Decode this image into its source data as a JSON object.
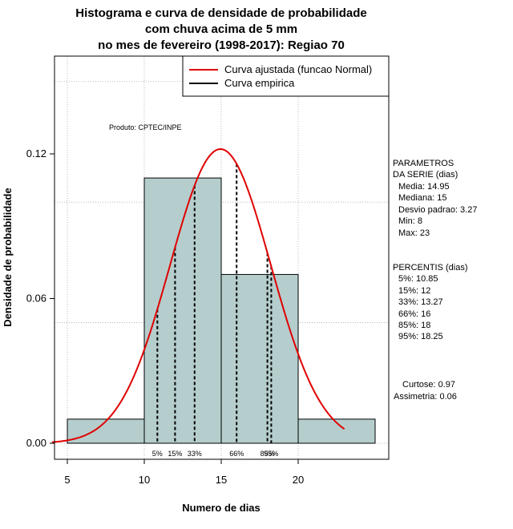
{
  "chart_data": {
    "type": "histogram",
    "title_lines": [
      "Histograma e curva de densidade de probabilidade",
      "com chuva acima de 5 mm",
      "no mes de fevereiro (1998-2017): Regiao 70"
    ],
    "xlabel": "Numero de dias",
    "ylabel": "Densidade de probabilidade",
    "xlim": [
      4,
      25
    ],
    "ylim": [
      0,
      0.16
    ],
    "x_ticks": [
      5,
      10,
      15,
      20
    ],
    "y_ticks": [
      0.0,
      0.06,
      0.12
    ],
    "y_tick_labels": [
      "0.00",
      "0.06",
      "0.12"
    ],
    "bins": [
      {
        "start": 5,
        "end": 10,
        "density": 0.01
      },
      {
        "start": 10,
        "end": 15,
        "density": 0.11
      },
      {
        "start": 15,
        "end": 20,
        "density": 0.07
      },
      {
        "start": 20,
        "end": 25,
        "density": 0.01
      }
    ],
    "normal_curve": {
      "mean": 14.95,
      "sd": 3.27,
      "x_from": 4,
      "x_to": 23
    },
    "percentile_lines": [
      {
        "label": "5%",
        "x": 10.85
      },
      {
        "label": "15%",
        "x": 12
      },
      {
        "label": "33%",
        "x": 13.27
      },
      {
        "label": "66%",
        "x": 16
      },
      {
        "label": "85%",
        "x": 18
      },
      {
        "label": "95%",
        "x": 18.25
      }
    ],
    "legend": [
      {
        "label": "Curva ajustada (funcao Normal)",
        "color": "#e00000"
      },
      {
        "label": "Curva empirica",
        "color": "#000000"
      }
    ],
    "product_label": "Produto: CPTEC/INPE",
    "parameters": {
      "header_1": "PARAMETROS",
      "header_2": "DA SERIE (dias)",
      "lines": [
        "Media: 14.95",
        "Mediana: 15",
        "Desvio padrao: 3.27",
        "Min: 8",
        "Max: 23"
      ]
    },
    "percentis": {
      "header": "PERCENTIS (dias)",
      "lines": [
        "5%: 10.85",
        "15%: 12",
        "33%: 13.27",
        "66%: 16",
        "85%: 18",
        "95%: 18.25"
      ]
    },
    "shape_stats": [
      "Curtose: 0.97",
      "Assimetria: 0.06"
    ],
    "colors": {
      "bar_fill": "#b5cdcd",
      "curve": "#e00000",
      "grid": "#aaaaaa"
    }
  }
}
